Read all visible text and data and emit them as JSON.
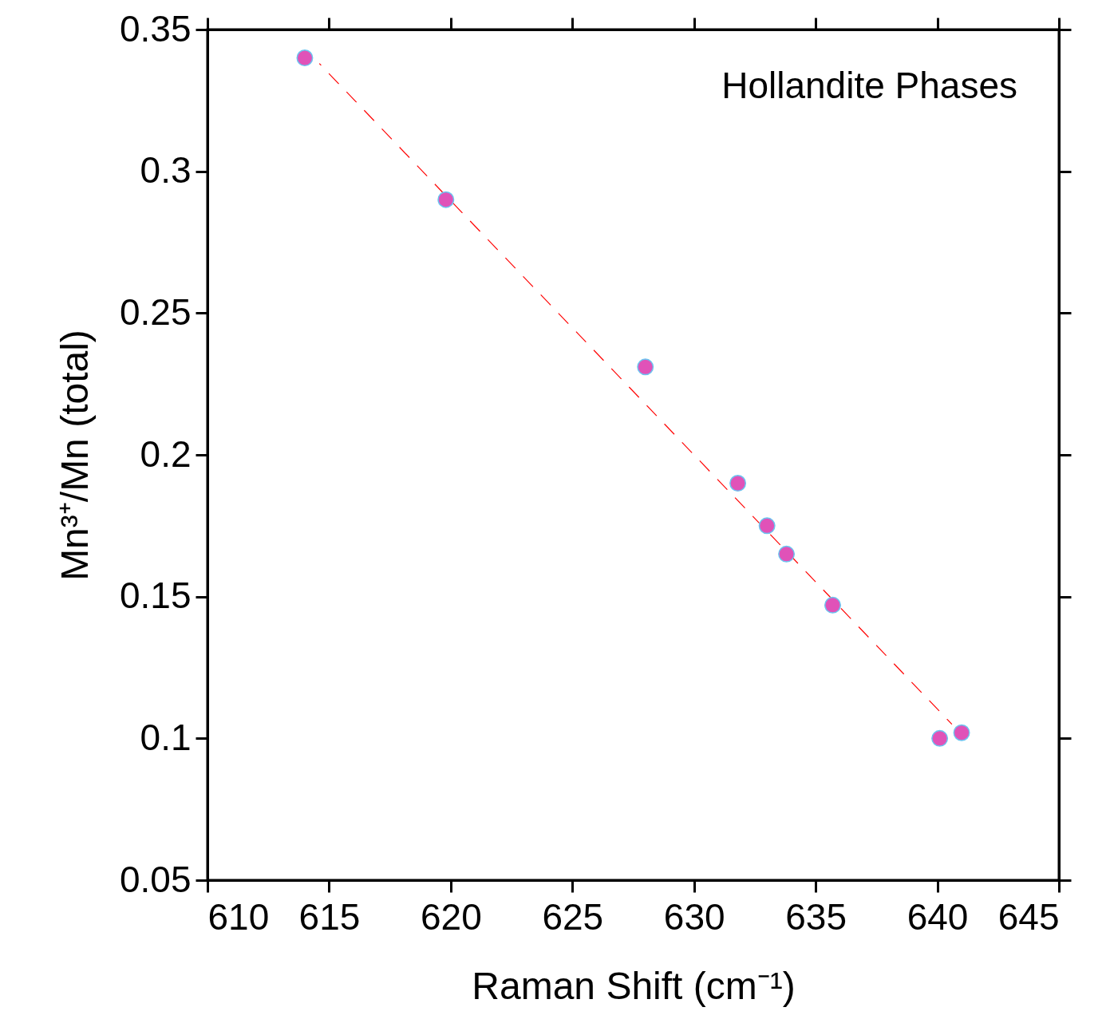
{
  "chart_data": {
    "type": "scatter",
    "xlabel": "Raman Shift (cm⁻¹)",
    "ylabel": "Mn³⁺/Mn (total)",
    "annotations": [
      "Hollandite Phases"
    ],
    "xlim": [
      610,
      645
    ],
    "xticks": [
      610,
      615,
      620,
      625,
      630,
      635,
      640,
      645
    ],
    "ylim": [
      0.05,
      0.35
    ],
    "yticks": [
      0.05,
      0.1,
      0.15,
      0.2,
      0.25,
      0.3,
      0.35
    ],
    "grid": false,
    "series": [
      {
        "marker": "circle",
        "color": "#e052b8",
        "x": [
          614.0,
          619.8,
          628.0,
          631.8,
          633.0,
          633.8,
          635.7,
          640.1,
          641.0
        ],
        "values": [
          0.34,
          0.29,
          0.231,
          0.19,
          0.175,
          0.165,
          0.147,
          0.1,
          0.102
        ]
      },
      {
        "type": "line",
        "color": "#ff0000",
        "line_style": "dashed",
        "x": [
          614.6,
          640.6
        ],
        "values": [
          0.338,
          0.105
        ]
      }
    ]
  }
}
